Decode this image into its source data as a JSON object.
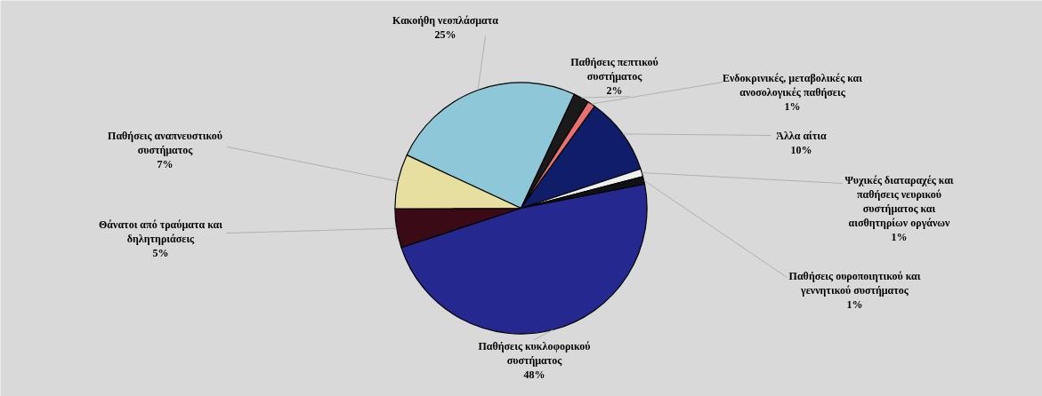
{
  "chart_data": {
    "type": "pie",
    "categories": [
      "Κακοήθη νεοπλάσματα",
      "Παθήσεις πεπτικού συστήματος",
      "Ενδοκρινικές, μεταβολικές και ανοσολογικές παθήσεις",
      "Άλλα αίτια",
      "Ψυχικές διαταραχές και παθήσεις νευρικού συστήματος και αισθητηρίων οργάνων",
      "Παθήσεις ουροποιητικού και γεννητικού συστήματος",
      "Παθήσεις κυκλοφορικού συστήματος",
      "Θάνατοι από τραύματα και δηλητηριάσεις",
      "Παθήσεις αναπνευστικού συστήματος"
    ],
    "values": [
      25,
      2,
      1,
      10,
      1,
      1,
      48,
      5,
      7
    ],
    "value_labels": [
      "25%",
      "2%",
      "1%",
      "10%",
      "1%",
      "1%",
      "48%",
      "5%",
      "7%"
    ],
    "colors": [
      "#8ec8d8",
      "#1a1a1a",
      "#e87070",
      "#101e6a",
      "#eeeeee",
      "#111111",
      "#25288f",
      "#3a0a16",
      "#e6dfa0"
    ]
  }
}
